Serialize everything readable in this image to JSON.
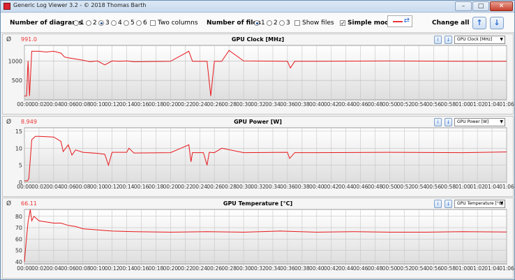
{
  "app": {
    "title": "Generic Log Viewer 3.2 - © 2018 Thomas Barth",
    "minimize": "–",
    "maximize": "□",
    "close": "✕"
  },
  "toolbar": {
    "diagrams_label": "Number of diagrams",
    "diagram_options": [
      "1",
      "2",
      "3",
      "4",
      "5",
      "6"
    ],
    "diagrams_selected": "3",
    "two_columns_label": "Two columns",
    "files_label": "Number of files",
    "file_options": [
      "1",
      "2",
      "3"
    ],
    "files_selected": "1",
    "show_files_label": "Show files",
    "simple_mode_label": "Simple mode",
    "simple_mode_checked": true,
    "change_all_label": "Change all",
    "up_icon": "arrow-up",
    "down_icon": "arrow-down"
  },
  "colors": {
    "line": "#e8181c",
    "accent": "#2a6bd1"
  },
  "time_labels": [
    "00:00",
    "00:02",
    "00:04",
    "00:06",
    "00:08",
    "00:10",
    "00:12",
    "00:14",
    "00:16",
    "00:18",
    "00:20",
    "00:22",
    "00:24",
    "00:26",
    "00:28",
    "00:30",
    "00:32",
    "00:34",
    "00:36",
    "00:38",
    "00:40",
    "00:42",
    "00:44",
    "00:46",
    "00:48",
    "00:50",
    "00:52",
    "00:54",
    "00:56",
    "00:58",
    "01:00",
    "01:02",
    "01:04",
    "01:06"
  ],
  "chart_data": [
    {
      "type": "line",
      "title": "GPU Clock [MHz]",
      "selector": "GPU Clock [MHz]",
      "current_value": "991.0",
      "ylim": [
        0,
        1400
      ],
      "yticks": [
        500,
        1000
      ],
      "series": [
        {
          "x": [
            0,
            0.3,
            0.5,
            0.7,
            1.0,
            2,
            3,
            4,
            5,
            5.5,
            6,
            7,
            8,
            9,
            10,
            11,
            12,
            13,
            14,
            15,
            20,
            22.5,
            23,
            24,
            25,
            25.5,
            26,
            27,
            28,
            30,
            36,
            36.4,
            37,
            40,
            50,
            60,
            66
          ],
          "y": [
            100,
            100,
            1000,
            100,
            1250,
            1250,
            1230,
            1250,
            1200,
            1100,
            1080,
            1050,
            1020,
            980,
            1000,
            900,
            1000,
            990,
            1000,
            980,
            990,
            1250,
            990,
            990,
            990,
            100,
            990,
            990,
            1270,
            1000,
            990,
            820,
            990,
            990,
            1000,
            990,
            991
          ]
        }
      ]
    },
    {
      "type": "line",
      "title": "GPU Power [W]",
      "selector": "GPU Power [W]",
      "current_value": "8.949",
      "ylim": [
        0,
        16
      ],
      "yticks": [
        0,
        5,
        10,
        15
      ],
      "series": [
        {
          "x": [
            0,
            0.4,
            0.6,
            1.0,
            1.5,
            2,
            4,
            5,
            5.3,
            6,
            6.5,
            7,
            8,
            10,
            11,
            11.5,
            12,
            14,
            14.3,
            15,
            20,
            22.5,
            22.8,
            23,
            24.5,
            25,
            25.3,
            26,
            27,
            30,
            36,
            36.3,
            37,
            40,
            50,
            60,
            66
          ],
          "y": [
            0.4,
            0.4,
            1,
            12.5,
            13.5,
            13.5,
            13.3,
            12,
            9,
            11,
            8,
            9.5,
            8.8,
            8.5,
            8.2,
            5,
            8.8,
            8.8,
            10,
            8.6,
            8.7,
            11,
            6,
            8.7,
            8.7,
            5,
            8.8,
            8.7,
            10,
            8.7,
            8.8,
            7,
            8.7,
            8.7,
            8.8,
            8.7,
            8.9
          ]
        }
      ]
    },
    {
      "type": "line",
      "title": "GPU Temperature [°C]",
      "selector": "GPU Temperature [°C]",
      "current_value": "66.11",
      "ylim": [
        38,
        86
      ],
      "yticks": [
        40,
        50,
        60,
        70,
        80
      ],
      "series": [
        {
          "x": [
            0,
            0.2,
            0.5,
            0.8,
            1.0,
            1.3,
            2,
            3,
            4,
            5,
            6,
            7,
            8,
            10,
            12,
            15,
            20,
            25,
            30,
            35,
            40,
            45,
            50,
            55,
            60,
            66
          ],
          "y": [
            40,
            55,
            75,
            86,
            76,
            80,
            76,
            75,
            74,
            74,
            72,
            71,
            69,
            68,
            67,
            66.5,
            66,
            66.5,
            66,
            67,
            66,
            66.5,
            66,
            66,
            66.5,
            66.1
          ]
        }
      ]
    }
  ]
}
